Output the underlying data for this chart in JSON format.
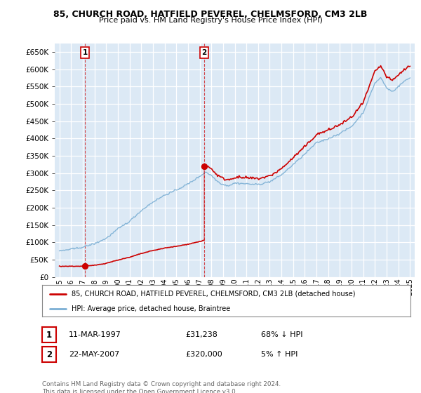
{
  "title": "85, CHURCH ROAD, HATFIELD PEVEREL, CHELMSFORD, CM3 2LB",
  "subtitle": "Price paid vs. HM Land Registry's House Price Index (HPI)",
  "legend_line1": "85, CHURCH ROAD, HATFIELD PEVEREL, CHELMSFORD, CM3 2LB (detached house)",
  "legend_line2": "HPI: Average price, detached house, Braintree",
  "annotation1_date": "11-MAR-1997",
  "annotation1_price": "£31,238",
  "annotation1_hpi": "68% ↓ HPI",
  "annotation2_date": "22-MAY-2007",
  "annotation2_price": "£320,000",
  "annotation2_hpi": "5% ↑ HPI",
  "footer": "Contains HM Land Registry data © Crown copyright and database right 2024.\nThis data is licensed under the Open Government Licence v3.0.",
  "bg_color": "#dce9f5",
  "grid_color": "#ffffff",
  "sale_color": "#cc0000",
  "hpi_color": "#7bafd4",
  "ylim_min": 0,
  "ylim_max": 675000,
  "yticks": [
    0,
    50000,
    100000,
    150000,
    200000,
    250000,
    300000,
    350000,
    400000,
    450000,
    500000,
    550000,
    600000,
    650000
  ],
  "year_start": 1995,
  "year_end": 2025,
  "sale1_year": 1997.19,
  "sale1_price": 31238,
  "sale2_year": 2007.38,
  "sale2_price": 320000
}
